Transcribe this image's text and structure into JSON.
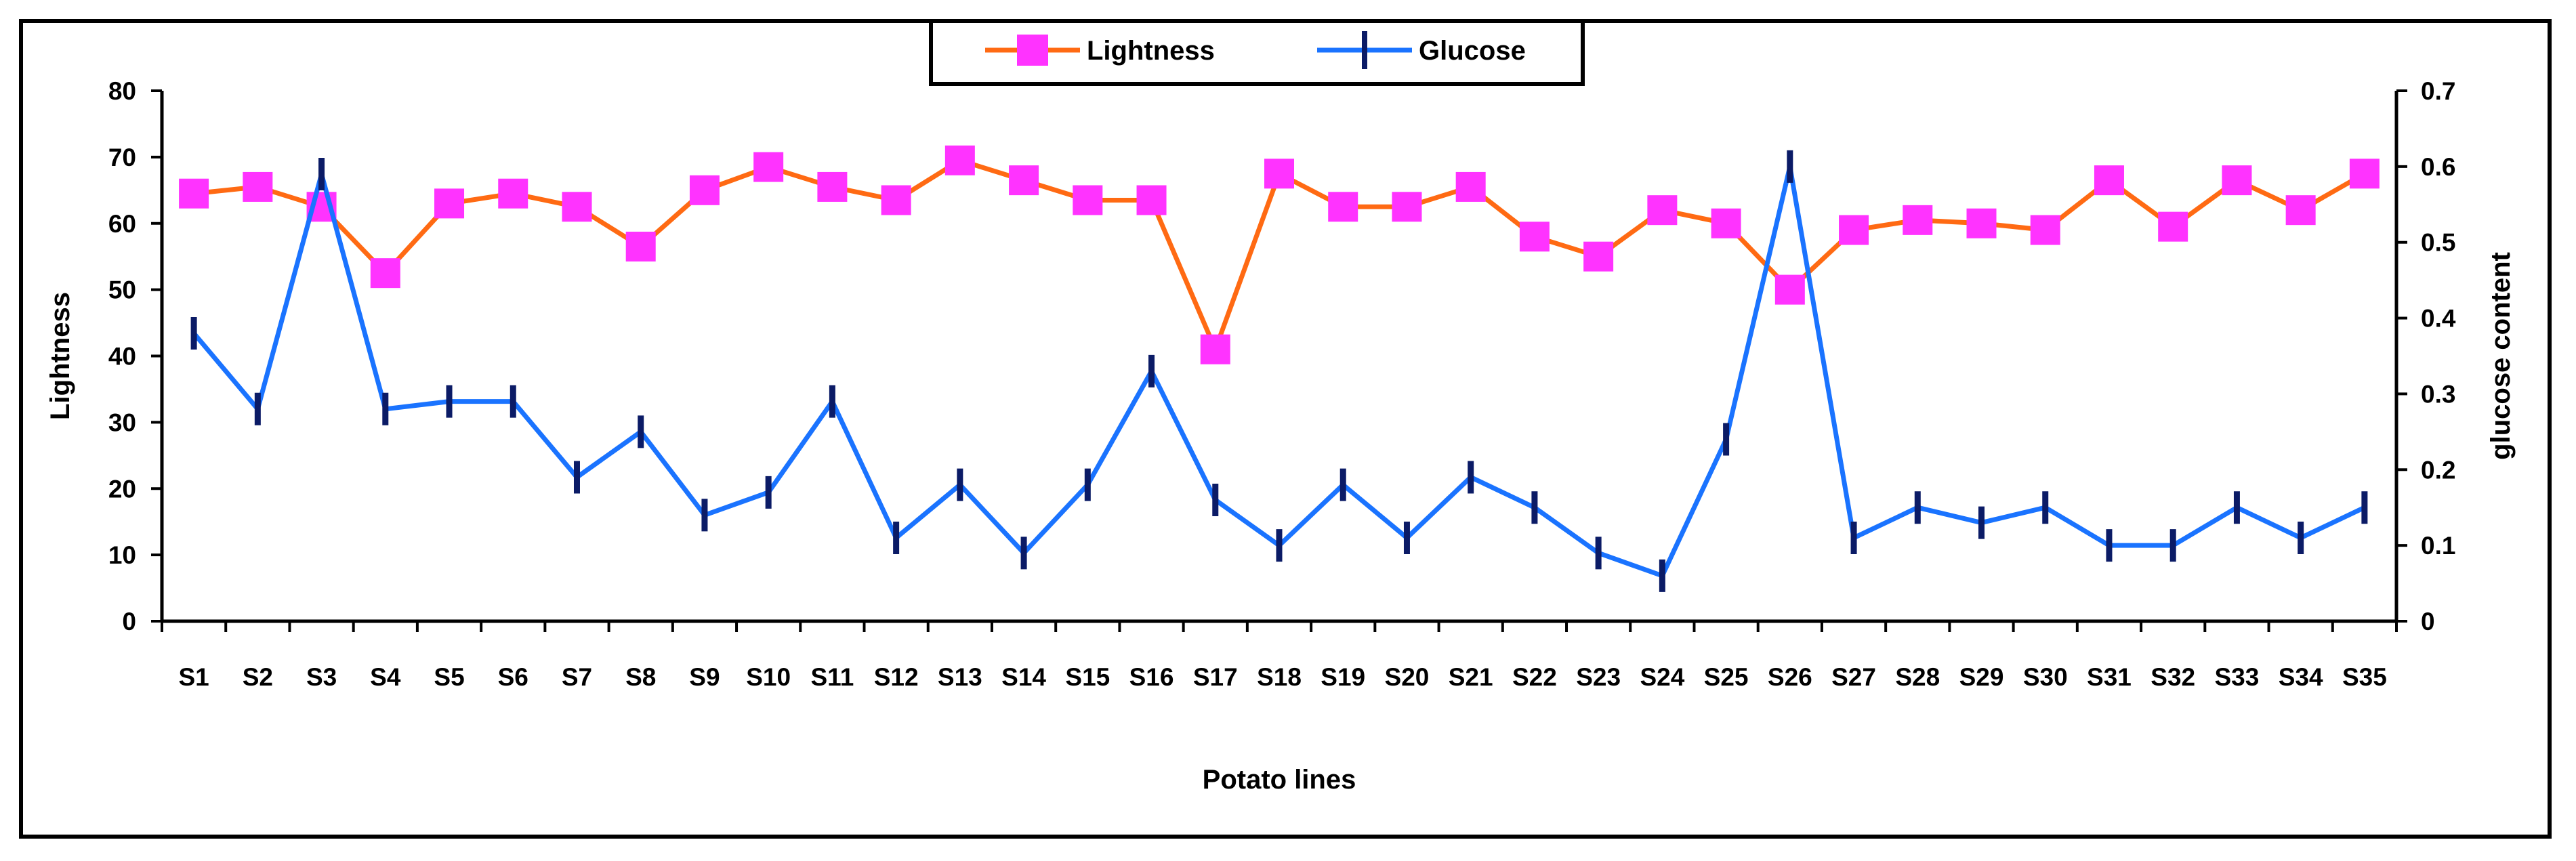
{
  "chart_data": {
    "type": "line",
    "title": "",
    "xlabel": "Potato lines",
    "ylabel_left": "Lightness",
    "ylabel_right": "glucose content",
    "ylim_left": [
      0,
      80
    ],
    "ylim_right": [
      0,
      0.7
    ],
    "yticks_left": [
      "0",
      "10",
      "20",
      "30",
      "40",
      "50",
      "60",
      "70",
      "80"
    ],
    "yticks_right": [
      "0",
      "0.1",
      "0.2",
      "0.3",
      "0.4",
      "0.5",
      "0.6",
      "0.7"
    ],
    "legend_position": "top-center",
    "categories": [
      "S1",
      "S2",
      "S3",
      "S4",
      "S5",
      "S6",
      "S7",
      "S8",
      "S9",
      "S10",
      "S11",
      "S12",
      "S13",
      "S14",
      "S15",
      "S16",
      "S17",
      "S18",
      "S19",
      "S20",
      "S21",
      "S22",
      "S23",
      "S24",
      "S25",
      "S26",
      "S27",
      "S28",
      "S29",
      "S30",
      "S31",
      "S32",
      "S33",
      "S34",
      "S35"
    ],
    "series": [
      {
        "name": "Lightness",
        "axis": "left",
        "color": "#ff6a13",
        "marker_color": "#ff33ff",
        "marker": "square",
        "values": [
          64.5,
          65.5,
          62.5,
          52.5,
          63,
          64.5,
          62.5,
          56.5,
          65,
          68.5,
          65.5,
          63.5,
          69.5,
          66.5,
          63.5,
          63.5,
          41,
          67.5,
          62.5,
          62.5,
          65.5,
          58,
          55,
          62,
          60,
          50,
          59,
          60.5,
          60,
          59,
          66.5,
          59.5,
          66.5,
          62,
          67.5
        ]
      },
      {
        "name": "Glucose",
        "axis": "right",
        "color": "#1a73ff",
        "marker_color": "#0b1b66",
        "marker": "errorbar",
        "values": [
          0.38,
          0.28,
          0.59,
          0.28,
          0.29,
          0.29,
          0.19,
          0.25,
          0.14,
          0.17,
          0.29,
          0.11,
          0.18,
          0.09,
          0.18,
          0.33,
          0.16,
          0.1,
          0.18,
          0.11,
          0.19,
          0.15,
          0.09,
          0.06,
          0.24,
          0.6,
          0.11,
          0.15,
          0.13,
          0.15,
          0.1,
          0.1,
          0.15,
          0.11,
          0.15
        ]
      }
    ]
  }
}
